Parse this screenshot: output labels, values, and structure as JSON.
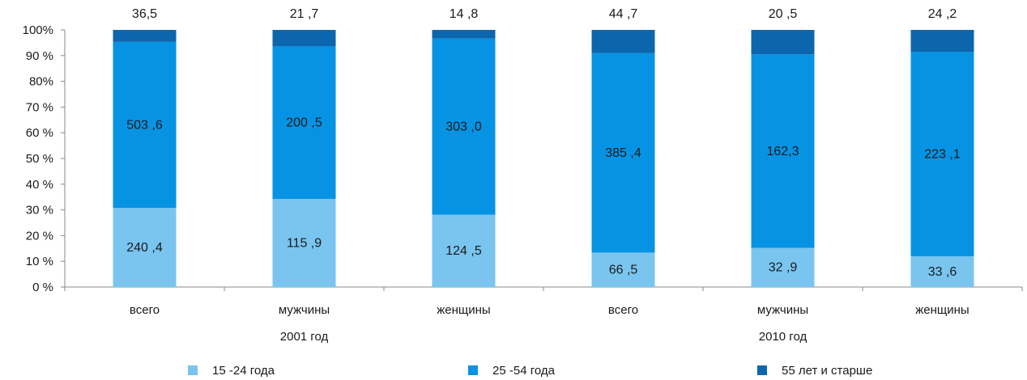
{
  "chart_data": {
    "type": "bar",
    "stacked": "percent",
    "categories": [
      "всего",
      "мужчины",
      "женщины",
      "всего",
      "мужчины",
      "женщины"
    ],
    "groups": [
      {
        "label": "2001 год",
        "categories": [
          "всего",
          "мужчины",
          "женщины"
        ]
      },
      {
        "label": "2010 год",
        "categories": [
          "всего",
          "мужчины",
          "женщины"
        ]
      }
    ],
    "series": [
      {
        "name": "15 -24 года",
        "color": "#79c5f0",
        "values": [
          240.4,
          115.9,
          124.5,
          66.5,
          32.9,
          33.6
        ],
        "labels": [
          "240 ,4",
          "115 ,9",
          "124 ,5",
          "66 ,5",
          "32 ,9",
          "33 ,6"
        ]
      },
      {
        "name": "25 -54 года",
        "color": "#0693e3",
        "values": [
          503.6,
          200.5,
          303.0,
          385.4,
          162.3,
          223.1
        ],
        "labels": [
          "503 ,6",
          "200 ,5",
          "303 ,0",
          "385 ,4",
          "162,3",
          "223 ,1"
        ]
      },
      {
        "name": "55 лет и старше",
        "color": "#0b66ad",
        "values": [
          36.5,
          21.7,
          14.8,
          44.7,
          20.5,
          24.2
        ],
        "labels": [
          "36,5",
          "21 ,7",
          "14 ,8",
          "44 ,7",
          "20 ,5",
          "24 ,2"
        ]
      }
    ],
    "yticks": [
      "0 %",
      "10 %",
      "20 %",
      "30 %",
      "40 %",
      "50 %",
      "60 %",
      "70 %",
      "80%",
      "90 %",
      "100%"
    ],
    "ylim": [
      0,
      100
    ],
    "legend_position": "bottom",
    "grid": false
  }
}
